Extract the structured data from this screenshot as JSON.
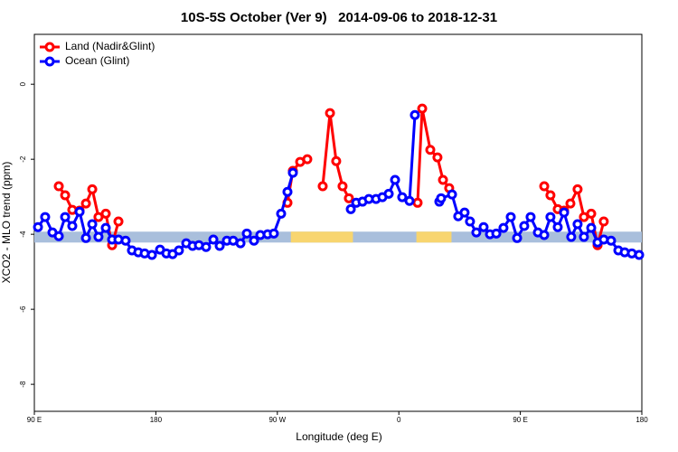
{
  "chart_data": {
    "type": "line",
    "title": "10S-5S October (Ver 9)   2014-09-06 to 2018-12-31",
    "x_label": "Longitude (deg E)",
    "y_label": "XCO2 - MLO trend (ppm)",
    "xlim": [
      90,
      540
    ],
    "ylim": [
      -8.72,
      1.33
    ],
    "xticks": [
      {
        "value": 90,
        "label": "90 E"
      },
      180,
      {
        "value": 270,
        "label": "90 W"
      },
      {
        "value": 360,
        "label": "0"
      },
      {
        "value": 450,
        "label": "90 E"
      },
      {
        "value": 540,
        "label": "180"
      }
    ],
    "yticks": [
      0,
      -2,
      -4,
      -6,
      -8
    ],
    "legend": "topleft",
    "band": {
      "range": [
        -4.22,
        -3.93
      ],
      "color": "#a9bfdc",
      "highlights": [
        {
          "xlim": [
            280,
            326
          ],
          "color": "#f8d56f"
        },
        {
          "xlim": [
            373,
            399
          ],
          "color": "#f8d56f"
        }
      ]
    },
    "series": [
      {
        "name": "Land (Nadir&Glint)",
        "color": "#ff0000",
        "x": [
          108.1,
          112.8,
          118.1,
          123.5,
          128.2,
          132.9,
          137.5,
          142.9,
          147.6,
          152.3,
          null,
          277.5,
          281.5,
          286.9,
          292.2,
          null,
          303.6,
          309.0,
          313.6,
          318.3,
          323.0,
          null,
          373.9,
          377.3,
          383.3,
          388.6,
          392.7,
          397.3,
          null,
          467.7,
          472.3,
          477.7,
          482.4,
          487.1,
          492.4,
          497.1,
          502.5,
          507.2,
          511.8
        ],
        "values": [
          -2.72,
          -2.96,
          -3.35,
          -3.37,
          -3.18,
          -2.8,
          -3.54,
          -3.45,
          -4.29,
          -3.66,
          null,
          -3.16,
          -2.31,
          -2.07,
          -2.0,
          null,
          -2.72,
          -0.77,
          -2.05,
          -2.72,
          -3.04,
          null,
          -3.16,
          -0.65,
          -1.75,
          -1.95,
          -2.55,
          -2.77,
          null,
          -2.72,
          -2.96,
          -3.33,
          -3.37,
          -3.18,
          -2.8,
          -3.54,
          -3.45,
          -4.29,
          -3.66
        ]
      },
      {
        "name": "Ocean (Glint)",
        "color": "#0000ff",
        "x": [
          92.7,
          98.0,
          103.4,
          108.1,
          112.8,
          118.1,
          123.5,
          128.2,
          132.9,
          137.5,
          142.9,
          147.6,
          152.3,
          157.6,
          162.3,
          167.0,
          171.7,
          177.1,
          183.1,
          187.8,
          192.4,
          197.1,
          202.5,
          207.2,
          211.9,
          217.2,
          222.6,
          227.3,
          232.6,
          237.3,
          242.7,
          247.4,
          252.7,
          257.4,
          262.8,
          267.4,
          272.8,
          277.5,
          281.5,
          null,
          324.4,
          328.4,
          333.1,
          337.8,
          343.1,
          347.8,
          352.5,
          357.2,
          362.5,
          367.9,
          371.9,
          null,
          390.0,
          391.3,
          399.4,
          404.0,
          408.7,
          412.7,
          417.4,
          422.8,
          427.5,
          432.2,
          437.5,
          442.9,
          447.6,
          452.9,
          457.6,
          463.0,
          467.7,
          472.3,
          477.7,
          482.4,
          487.7,
          492.4,
          497.1,
          502.5,
          507.2,
          511.8,
          517.2,
          522.6,
          527.3,
          532.6,
          538.0
        ],
        "values": [
          -3.81,
          -3.54,
          -3.95,
          -4.05,
          -3.54,
          -3.78,
          -3.4,
          -4.1,
          -3.73,
          -4.07,
          -3.83,
          -4.14,
          -4.14,
          -4.17,
          -4.43,
          -4.48,
          -4.51,
          -4.55,
          -4.41,
          -4.51,
          -4.53,
          -4.43,
          -4.24,
          -4.31,
          -4.29,
          -4.34,
          -4.14,
          -4.31,
          -4.17,
          -4.17,
          -4.24,
          -3.98,
          -4.17,
          -4.02,
          -4.0,
          -3.98,
          -3.45,
          -2.87,
          -2.36,
          null,
          -3.33,
          -3.16,
          -3.13,
          -3.06,
          -3.06,
          -3.01,
          -2.92,
          -2.55,
          -3.01,
          -3.11,
          -0.82,
          null,
          -3.13,
          -3.04,
          -2.94,
          -3.52,
          -3.42,
          -3.66,
          -3.95,
          -3.81,
          -4.0,
          -3.98,
          -3.83,
          -3.54,
          -4.1,
          -3.78,
          -3.54,
          -3.95,
          -4.02,
          -3.54,
          -3.81,
          -3.42,
          -4.07,
          -3.73,
          -4.07,
          -3.83,
          -4.22,
          -4.14,
          -4.17,
          -4.43,
          -4.48,
          -4.51,
          -4.55
        ]
      }
    ]
  }
}
